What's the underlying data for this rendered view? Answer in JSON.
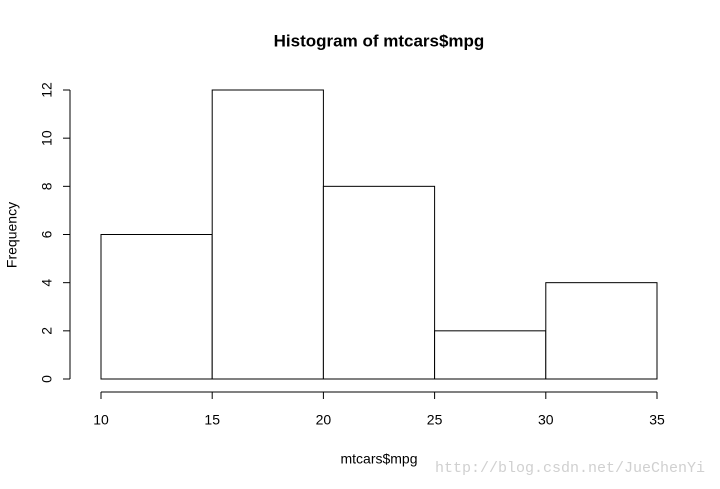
{
  "chart_data": {
    "type": "histogram",
    "title": "Histogram of mtcars$mpg",
    "xlabel": "mtcars$mpg",
    "ylabel": "Frequency",
    "bins": [
      10,
      15,
      20,
      25,
      30,
      35
    ],
    "counts": [
      6,
      12,
      8,
      2,
      4
    ],
    "color": "#ffffff",
    "edgecolor": "#000000",
    "xlim": [
      10,
      35
    ],
    "ylim": [
      0,
      12
    ],
    "xticks": [
      10,
      15,
      20,
      25,
      30,
      35
    ],
    "yticks": [
      0,
      2,
      4,
      6,
      8,
      10,
      12
    ],
    "grid": false,
    "watermark": "http://blog.csdn.net/JueChenYi"
  }
}
